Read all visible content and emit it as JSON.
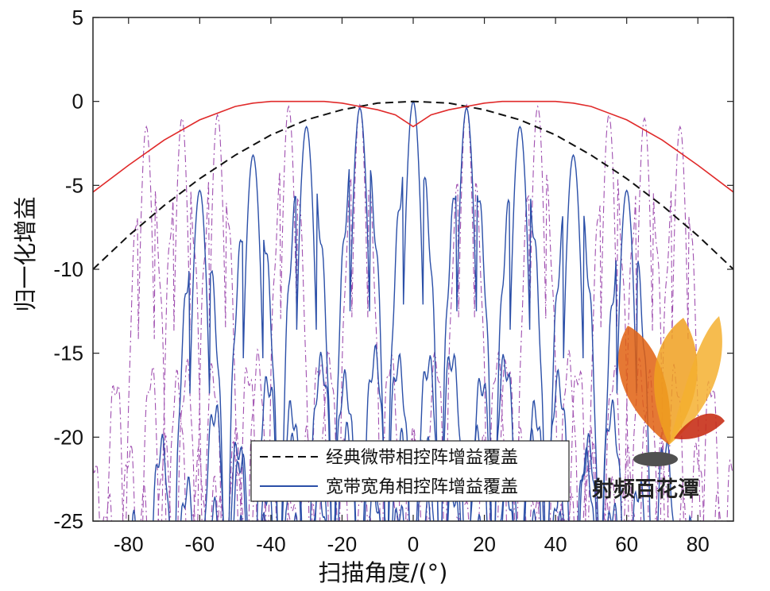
{
  "chart_data": {
    "type": "line",
    "xlabel": "扫描角度/(°)",
    "ylabel": "归一化增益",
    "xlim": [
      -90,
      90
    ],
    "ylim": [
      -25,
      5
    ],
    "xticks": [
      -80,
      -60,
      -40,
      -20,
      0,
      20,
      40,
      60,
      80
    ],
    "yticks": [
      5,
      0,
      -5,
      -10,
      -15,
      -20,
      -25
    ],
    "grid": false,
    "legend_position": "bottom-center",
    "series": [
      {
        "name": "经典微带相控阵增益覆盖",
        "style": "dashed",
        "color": "#111111",
        "x": [
          -90,
          -80,
          -70,
          -60,
          -50,
          -40,
          -30,
          -20,
          -10,
          0,
          10,
          20,
          30,
          40,
          50,
          60,
          70,
          80,
          90
        ],
        "y": [
          -10.0,
          -8.0,
          -6.2,
          -4.6,
          -3.2,
          -2.0,
          -1.1,
          -0.5,
          -0.1,
          0.0,
          -0.1,
          -0.5,
          -1.1,
          -2.0,
          -3.2,
          -4.6,
          -6.2,
          -8.0,
          -10.0
        ]
      },
      {
        "name": "宽带宽角相控阵增益覆盖",
        "style": "solid",
        "color": "#2b4fa8",
        "beams": [
          {
            "peak_x": -60,
            "peak_y": -5.3
          },
          {
            "peak_x": -45,
            "peak_y": -3.2
          },
          {
            "peak_x": -30,
            "peak_y": -1.5
          },
          {
            "peak_x": -15,
            "peak_y": -0.4
          },
          {
            "peak_x": 0,
            "peak_y": 0.0
          },
          {
            "peak_x": 15,
            "peak_y": -0.4
          },
          {
            "peak_x": 30,
            "peak_y": -1.5
          },
          {
            "peak_x": 45,
            "peak_y": -3.2
          },
          {
            "peak_x": 60,
            "peak_y": -5.3
          }
        ]
      },
      {
        "style": "solid",
        "color": "#e02a2a",
        "x": [
          -90,
          -80,
          -70,
          -60,
          -50,
          -45,
          -40,
          -35,
          -30,
          -25,
          -20,
          -15,
          -10,
          -5,
          0,
          5,
          10,
          15,
          20,
          25,
          30,
          35,
          40,
          45,
          50,
          60,
          70,
          80,
          90
        ],
        "y": [
          -5.4,
          -3.8,
          -2.3,
          -1.1,
          -0.3,
          -0.1,
          0.0,
          0.0,
          0.0,
          0.0,
          -0.1,
          -0.3,
          -0.5,
          -0.8,
          -1.5,
          -0.8,
          -0.5,
          -0.3,
          -0.1,
          0.0,
          0.0,
          0.0,
          0.0,
          -0.1,
          -0.3,
          -1.1,
          -2.3,
          -3.8,
          -5.4
        ]
      },
      {
        "style": "dash-dot",
        "color": "#a050b0",
        "beams": [
          {
            "peak_x": -75,
            "peak_y": -1.5
          },
          {
            "peak_x": -65,
            "peak_y": -1.0
          },
          {
            "peak_x": -55,
            "peak_y": -0.8
          },
          {
            "peak_x": -35,
            "peak_y": -0.3
          },
          {
            "peak_x": -15,
            "peak_y": -0.2
          },
          {
            "peak_x": 15,
            "peak_y": -0.2
          },
          {
            "peak_x": 35,
            "peak_y": -0.3
          },
          {
            "peak_x": 55,
            "peak_y": -0.8
          },
          {
            "peak_x": 65,
            "peak_y": -1.0
          },
          {
            "peak_x": 75,
            "peak_y": -1.5
          }
        ]
      }
    ]
  },
  "watermark": {
    "text": "射频百花潭",
    "colors": [
      "#f0a020",
      "#e06010",
      "#c83018",
      "#505050"
    ]
  }
}
